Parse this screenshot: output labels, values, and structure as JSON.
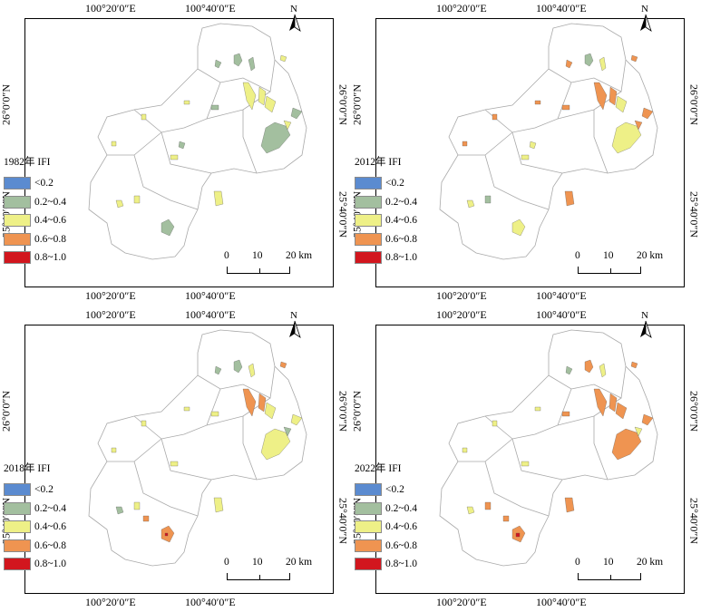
{
  "axes": {
    "lon_labels": [
      "100°20′0″E",
      "100°40′0″E"
    ],
    "lat_labels": [
      "26°0′0″N",
      "25°40′0″N"
    ]
  },
  "north_arrow": {
    "letter": "N",
    "icon": "north-arrow-icon"
  },
  "scale_bar": {
    "ticks": [
      "0",
      "10",
      "20 km"
    ]
  },
  "legend_classes": [
    {
      "label": "<0.2",
      "color": "#5b8bd0"
    },
    {
      "label": "0.2~0.4",
      "color": "#a3bf9f"
    },
    {
      "label": "0.4~0.6",
      "color": "#eef087"
    },
    {
      "label": "0.6~0.8",
      "color": "#ef9451"
    },
    {
      "label": "0.8~1.0",
      "color": "#d2161e"
    }
  ],
  "panels": [
    {
      "id": "p1982",
      "title": "1982年 IFI"
    },
    {
      "id": "p2012",
      "title": "2012年 IFI"
    },
    {
      "id": "p2018",
      "title": "2018年 IFI"
    },
    {
      "id": "p2022",
      "title": "2022年 IFI"
    }
  ]
}
